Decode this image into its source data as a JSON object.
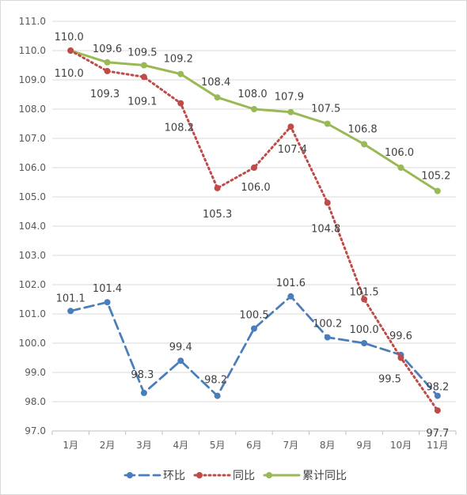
{
  "chart_data": {
    "type": "line",
    "categories": [
      "1月",
      "2月",
      "3月",
      "4月",
      "5月",
      "6月",
      "7月",
      "8月",
      "9月",
      "10月",
      "11月"
    ],
    "ylim": [
      97.0,
      111.0
    ],
    "ytick_step": 1.0,
    "yticks": [
      "97.0",
      "98.0",
      "99.0",
      "100.0",
      "101.0",
      "102.0",
      "103.0",
      "104.0",
      "105.0",
      "106.0",
      "107.0",
      "108.0",
      "109.0",
      "110.0",
      "111.0"
    ],
    "grid": true,
    "legend_position": "bottom",
    "series": [
      {
        "name": "环比",
        "values": [
          101.1,
          101.4,
          98.3,
          99.4,
          98.2,
          100.5,
          101.6,
          100.2,
          100.0,
          99.6,
          98.2
        ],
        "labels": [
          "101.1",
          "101.4",
          "98.3",
          "99.4",
          "98.2",
          "100.5",
          "101.6",
          "100.2",
          "100.0",
          "99.6",
          "98.2"
        ],
        "color": "#4a7ebb",
        "style": "dashed"
      },
      {
        "name": "同比",
        "values": [
          110.0,
          109.3,
          109.1,
          108.2,
          105.3,
          106.0,
          107.4,
          104.8,
          101.5,
          99.5,
          97.7
        ],
        "labels": [
          "110.0",
          "109.3",
          "109.1",
          "108.2",
          "105.3",
          "106.0",
          "107.4",
          "104.8",
          "101.5",
          "99.5",
          "97.7"
        ],
        "color": "#be4b48",
        "style": "dotted"
      },
      {
        "name": "累计同比",
        "values": [
          110.0,
          109.6,
          109.5,
          109.2,
          108.4,
          108.0,
          107.9,
          107.5,
          106.8,
          106.0,
          105.2
        ],
        "labels": [
          "110.0",
          "109.6",
          "109.5",
          "109.2",
          "108.4",
          "108.0",
          "107.9",
          "107.5",
          "106.8",
          "106.0",
          "105.2"
        ],
        "color": "#98b954",
        "style": "solid"
      }
    ]
  }
}
